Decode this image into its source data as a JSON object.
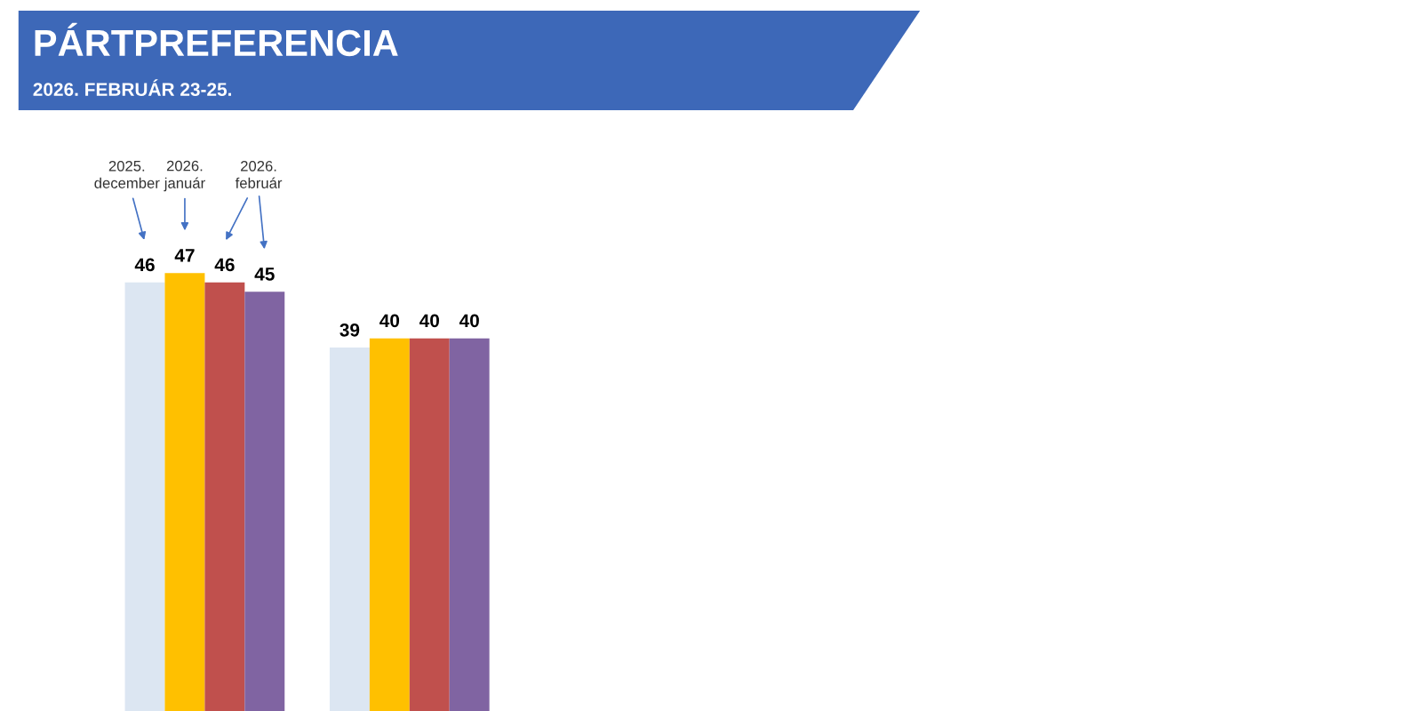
{
  "chart_data": {
    "type": "bar",
    "title": "PÁRTPREFERENCIA",
    "subtitle": "2026. FEBRUÁR 23-25.",
    "categories": [
      null,
      null
    ],
    "series": [
      {
        "color": "#dce6f2",
        "values": [
          46,
          39
        ]
      },
      {
        "color": "#ffc000",
        "values": [
          47,
          40
        ]
      },
      {
        "color": "#c0504d",
        "values": [
          46,
          40
        ]
      },
      {
        "color": "#8064a2",
        "values": [
          45,
          40
        ]
      }
    ],
    "annotations": [
      "2025.\ndecember",
      "2026.\njanuár",
      "2026.\nfebruár"
    ],
    "data_labels": true,
    "grid": false,
    "legend": false
  }
}
